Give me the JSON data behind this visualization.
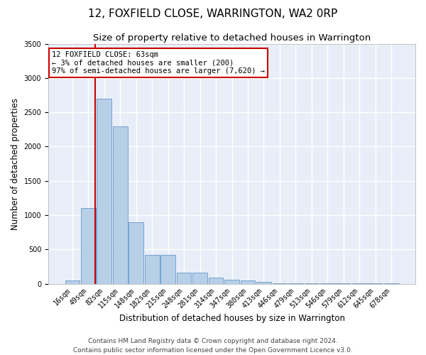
{
  "title": "12, FOXFIELD CLOSE, WARRINGTON, WA2 0RP",
  "subtitle": "Size of property relative to detached houses in Warrington",
  "xlabel": "Distribution of detached houses by size in Warrington",
  "ylabel": "Number of detached properties",
  "bar_labels": [
    "16sqm",
    "49sqm",
    "82sqm",
    "115sqm",
    "148sqm",
    "182sqm",
    "215sqm",
    "248sqm",
    "281sqm",
    "314sqm",
    "347sqm",
    "380sqm",
    "413sqm",
    "446sqm",
    "479sqm",
    "513sqm",
    "546sqm",
    "579sqm",
    "612sqm",
    "645sqm",
    "678sqm"
  ],
  "bar_values": [
    50,
    1100,
    2700,
    2300,
    900,
    420,
    420,
    160,
    160,
    90,
    60,
    50,
    30,
    10,
    5,
    3,
    2,
    1,
    1,
    1,
    1
  ],
  "bar_color": "#b8cfe8",
  "bar_edge_color": "#6699cc",
  "background_color": "#e8eef8",
  "grid_color": "#ffffff",
  "vline_x": 1.45,
  "vline_color": "#cc0000",
  "annotation_text": "12 FOXFIELD CLOSE: 63sqm\n← 3% of detached houses are smaller (200)\n97% of semi-detached houses are larger (7,620) →",
  "annotation_box_color": "#ffffff",
  "annotation_box_edge_color": "#cc0000",
  "ylim": [
    0,
    3500
  ],
  "yticks": [
    0,
    500,
    1000,
    1500,
    2000,
    2500,
    3000,
    3500
  ],
  "footer_line1": "Contains HM Land Registry data © Crown copyright and database right 2024.",
  "footer_line2": "Contains public sector information licensed under the Open Government Licence v3.0.",
  "title_fontsize": 11,
  "subtitle_fontsize": 9.5,
  "axis_label_fontsize": 8.5,
  "tick_fontsize": 7,
  "annotation_fontsize": 7.5,
  "footer_fontsize": 6.5
}
